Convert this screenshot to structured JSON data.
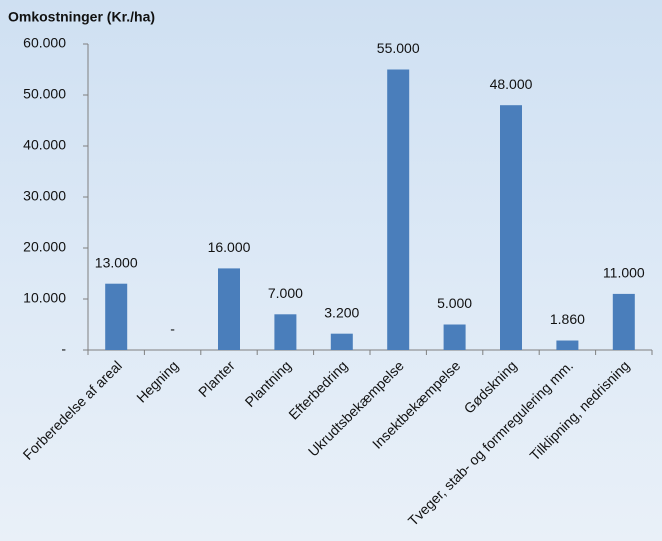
{
  "chart_data": {
    "type": "bar",
    "title": "Omkostninger  (Kr./ha)",
    "categories": [
      "Forberedelse af areal",
      "Hegning",
      "Planter",
      "Plantning",
      "Efterbedring",
      "Ukrudtsbekæmpelse",
      "Insektbekæmpelse",
      "Gødskning",
      "Tveger, stab- og formregulering mm.",
      "Tilklipning, nedrisning"
    ],
    "values": [
      13000,
      0,
      16000,
      7000,
      3200,
      55000,
      5000,
      48000,
      1860,
      11000
    ],
    "value_labels": [
      "13.000",
      "-",
      "16.000",
      "7.000",
      "3.200",
      "55.000",
      "5.000",
      "48.000",
      "1.860",
      "11.000"
    ],
    "color": "#4a7ebb",
    "ylim": [
      0,
      60000
    ],
    "yticks": [
      {
        "value": 0,
        "label": "-"
      },
      {
        "value": 10000,
        "label": "10.000"
      },
      {
        "value": 20000,
        "label": "20.000"
      },
      {
        "value": 30000,
        "label": "30.000"
      },
      {
        "value": 40000,
        "label": "40.000"
      },
      {
        "value": 50000,
        "label": "50.000"
      },
      {
        "value": 60000,
        "label": "60.000"
      }
    ],
    "grid": false
  }
}
